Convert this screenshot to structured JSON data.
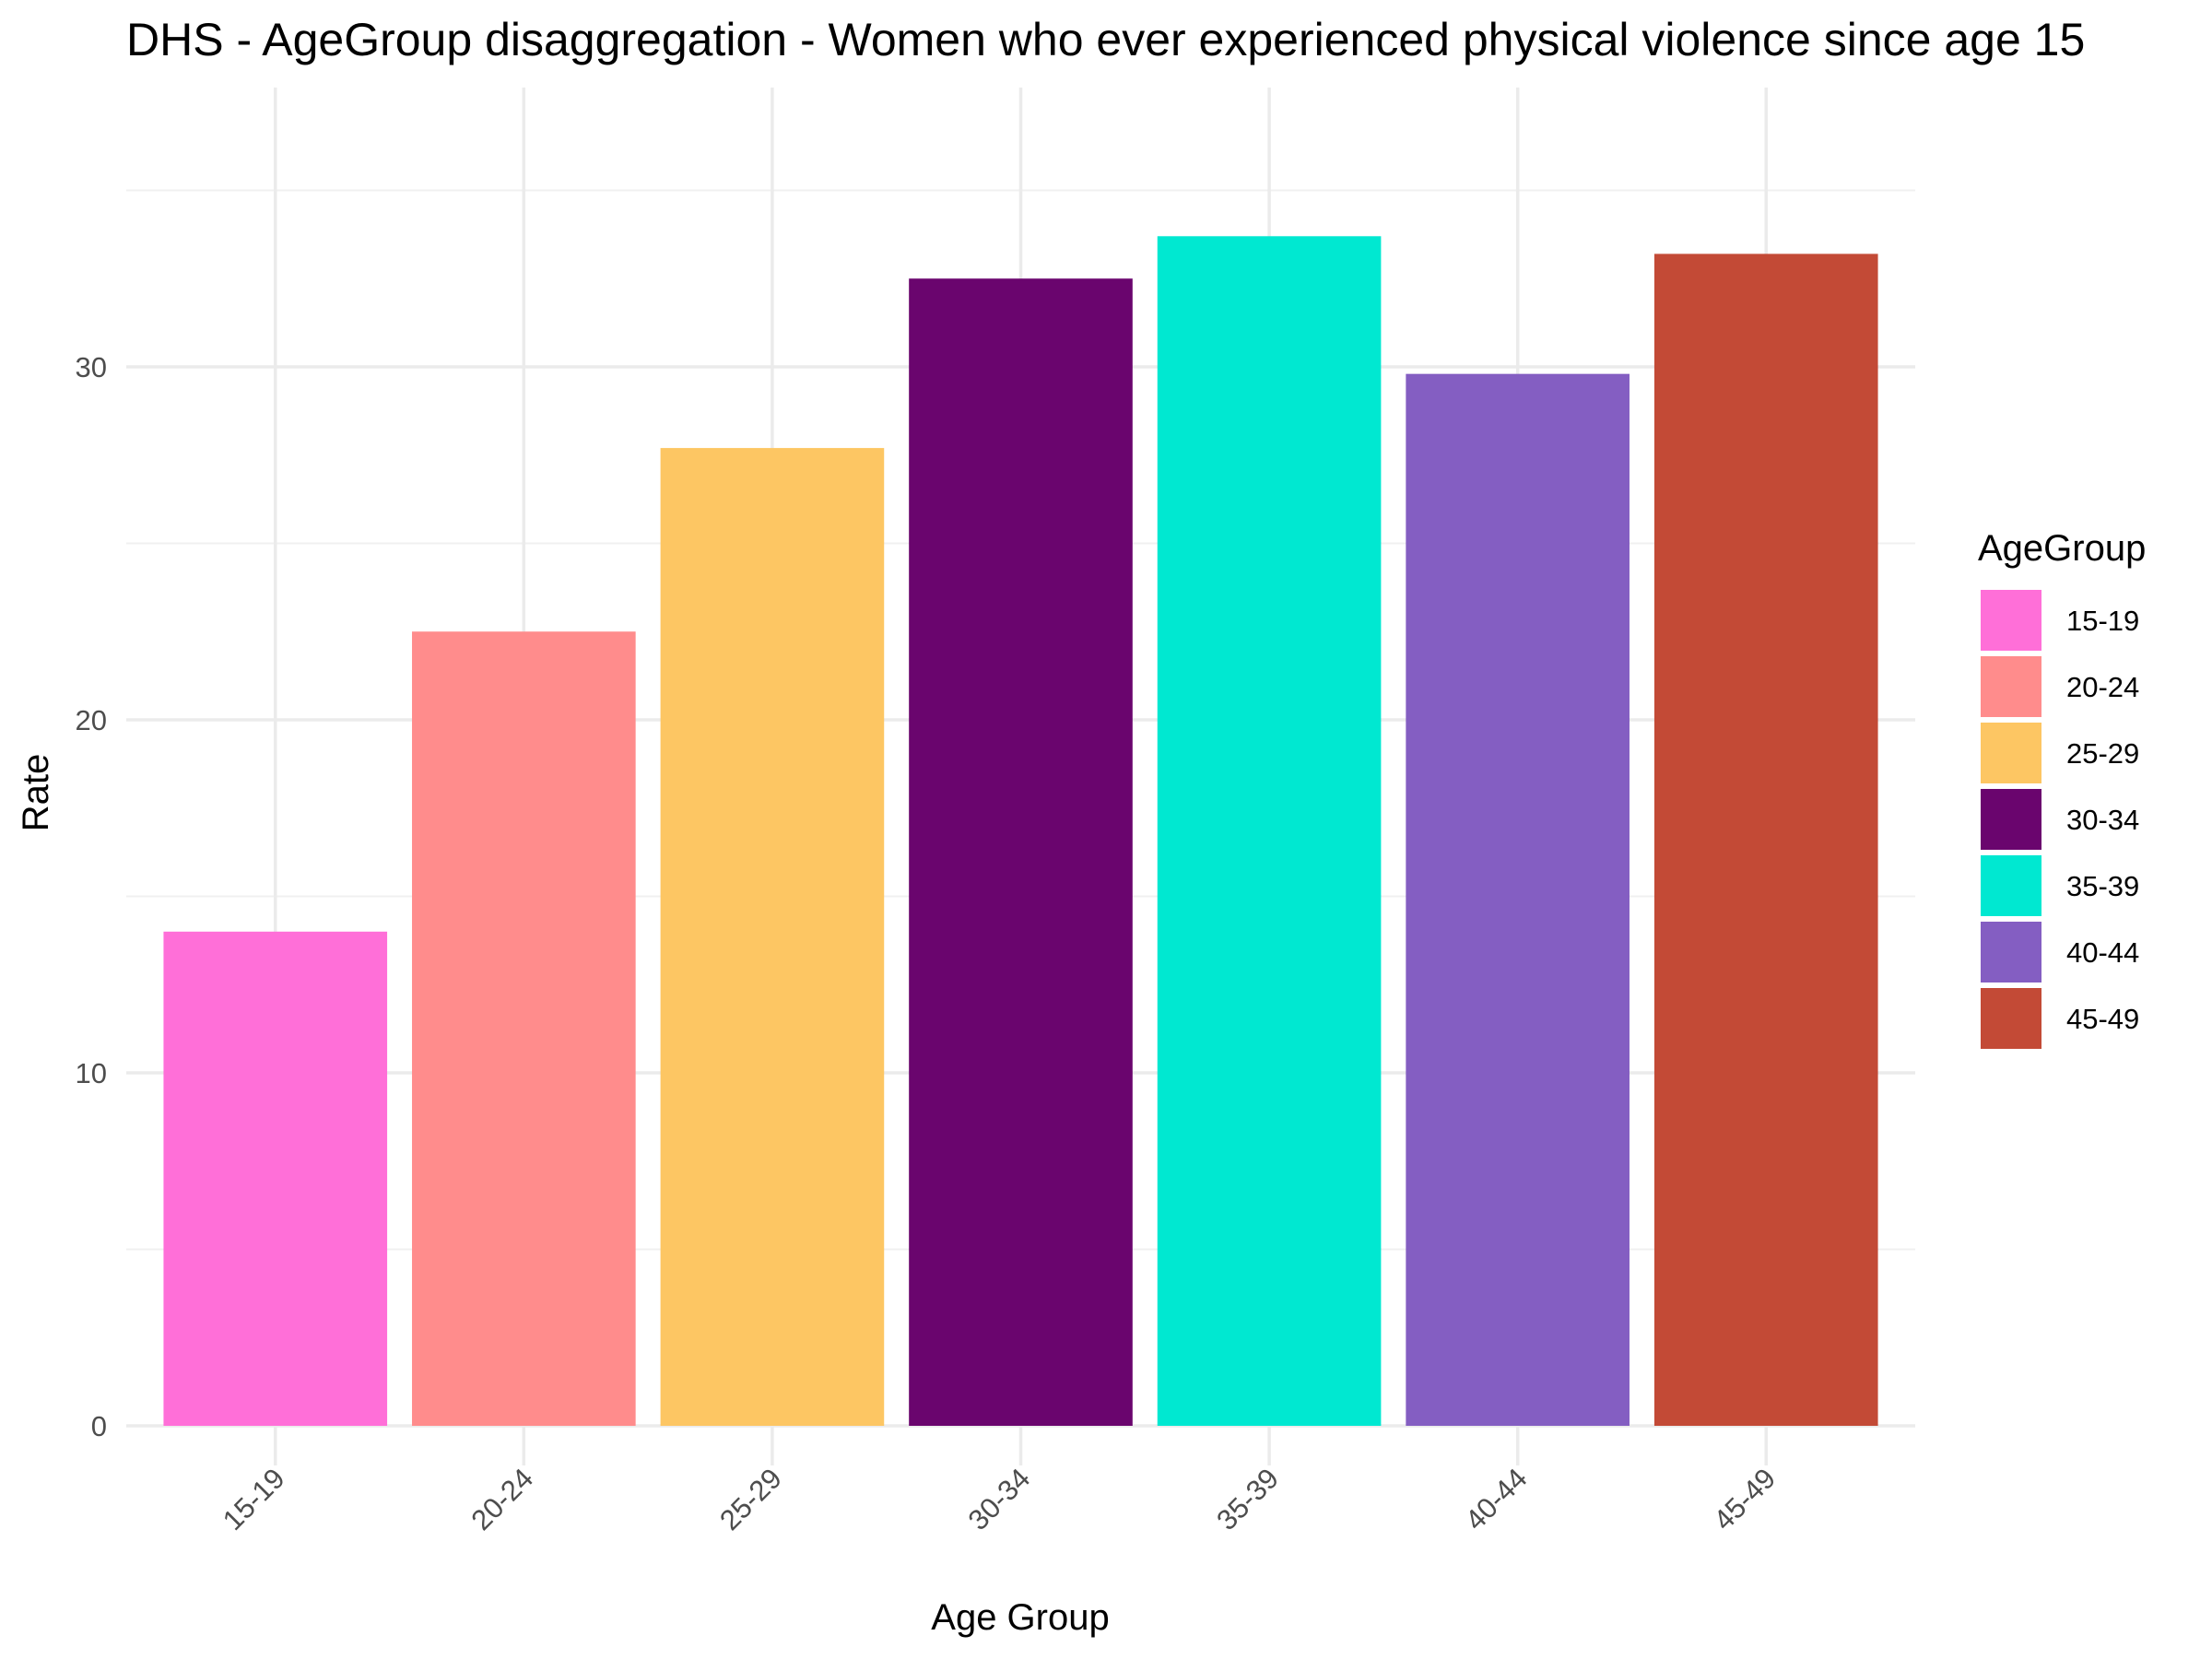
{
  "chart_data": {
    "type": "bar",
    "title": "DHS - AgeGroup disaggregation -  Women who ever experienced physical violence since age 15",
    "xlabel": "Age Group",
    "ylabel": "Rate",
    "categories": [
      "15-19",
      "20-24",
      "25-29",
      "30-34",
      "35-39",
      "40-44",
      "45-49"
    ],
    "values": [
      14.0,
      22.5,
      27.7,
      32.5,
      33.7,
      29.8,
      33.2
    ],
    "colors": [
      "#FF6FD8",
      "#FF8C8C",
      "#FDC663",
      "#6A056E",
      "#00E8D1",
      "#845EC2",
      "#C34A36"
    ],
    "ylim": [
      0,
      36
    ],
    "yticks": [
      0,
      10,
      20,
      30
    ],
    "grid": true,
    "legend": {
      "title": "AgeGroup",
      "placement": "right"
    }
  }
}
